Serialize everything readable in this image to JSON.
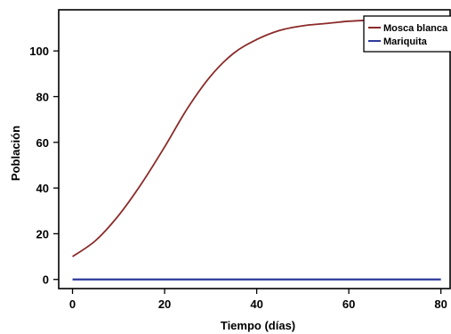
{
  "chart_data": {
    "type": "line",
    "title": "",
    "xlabel": "Tiempo (días)",
    "ylabel": "Población",
    "xlim": [
      -3,
      82
    ],
    "ylim": [
      -4,
      118
    ],
    "xticks": [
      0,
      20,
      40,
      60,
      80
    ],
    "yticks": [
      0,
      20,
      40,
      60,
      80,
      100
    ],
    "grid": false,
    "legend_position": "top-right",
    "series": [
      {
        "name": "Mosca blanca",
        "color": "#8b2a2a",
        "x": [
          0,
          5,
          10,
          15,
          20,
          25,
          30,
          35,
          40,
          45,
          50,
          55,
          60,
          65,
          70,
          75,
          80
        ],
        "y": [
          10,
          17,
          28,
          42,
          58,
          75,
          89,
          99,
          105,
          109,
          111,
          112,
          113,
          113.5,
          114,
          114,
          114
        ]
      },
      {
        "name": "Mariquita",
        "color": "#2d3a9a",
        "x": [
          0,
          20,
          40,
          60,
          80
        ],
        "y": [
          0,
          0,
          0,
          0,
          0
        ]
      }
    ]
  }
}
